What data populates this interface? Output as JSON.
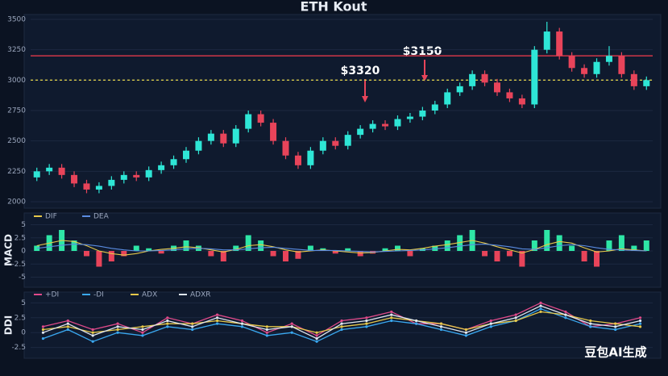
{
  "chart_data": [
    {
      "type": "candlestick",
      "title": "ETH Kout",
      "candles": [
        [
          2200,
          2280,
          2170,
          2250
        ],
        [
          2250,
          2310,
          2220,
          2280
        ],
        [
          2280,
          2310,
          2190,
          2220
        ],
        [
          2220,
          2250,
          2120,
          2150
        ],
        [
          2150,
          2180,
          2070,
          2100
        ],
        [
          2100,
          2160,
          2070,
          2130
        ],
        [
          2130,
          2210,
          2100,
          2180
        ],
        [
          2180,
          2250,
          2150,
          2220
        ],
        [
          2220,
          2250,
          2170,
          2200
        ],
        [
          2200,
          2290,
          2170,
          2260
        ],
        [
          2260,
          2330,
          2230,
          2300
        ],
        [
          2300,
          2380,
          2270,
          2350
        ],
        [
          2350,
          2450,
          2320,
          2420
        ],
        [
          2420,
          2530,
          2390,
          2500
        ],
        [
          2500,
          2590,
          2470,
          2560
        ],
        [
          2560,
          2590,
          2450,
          2480
        ],
        [
          2480,
          2630,
          2450,
          2600
        ],
        [
          2600,
          2750,
          2570,
          2720
        ],
        [
          2720,
          2750,
          2620,
          2650
        ],
        [
          2650,
          2680,
          2470,
          2500
        ],
        [
          2500,
          2530,
          2350,
          2380
        ],
        [
          2380,
          2410,
          2270,
          2300
        ],
        [
          2300,
          2450,
          2270,
          2420
        ],
        [
          2420,
          2530,
          2390,
          2500
        ],
        [
          2500,
          2530,
          2430,
          2460
        ],
        [
          2460,
          2580,
          2430,
          2550
        ],
        [
          2550,
          2630,
          2520,
          2600
        ],
        [
          2600,
          2670,
          2570,
          2640
        ],
        [
          2640,
          2670,
          2590,
          2620
        ],
        [
          2620,
          2710,
          2590,
          2680
        ],
        [
          2680,
          2730,
          2650,
          2700
        ],
        [
          2700,
          2780,
          2670,
          2750
        ],
        [
          2750,
          2830,
          2720,
          2800
        ],
        [
          2800,
          2930,
          2770,
          2900
        ],
        [
          2900,
          2980,
          2870,
          2950
        ],
        [
          2950,
          3080,
          2920,
          3050
        ],
        [
          3050,
          3080,
          2950,
          2980
        ],
        [
          2980,
          3010,
          2870,
          2900
        ],
        [
          2900,
          2930,
          2820,
          2850
        ],
        [
          2850,
          2880,
          2770,
          2800
        ],
        [
          2800,
          3280,
          2770,
          3250
        ],
        [
          3250,
          3480,
          3220,
          3400
        ],
        [
          3400,
          3430,
          3170,
          3200
        ],
        [
          3200,
          3230,
          3070,
          3100
        ],
        [
          3100,
          3130,
          3020,
          3050
        ],
        [
          3050,
          3180,
          3020,
          3150
        ],
        [
          3150,
          3280,
          3120,
          3200
        ],
        [
          3200,
          3230,
          3020,
          3050
        ],
        [
          3050,
          3080,
          2920,
          2950
        ],
        [
          2950,
          3030,
          2920,
          3000
        ]
      ],
      "up_color": "#2ee6d6",
      "down_color": "#e8445a",
      "ylim": [
        2000,
        3500
      ],
      "yticks": [
        2000,
        2250,
        2500,
        2750,
        3000,
        3250,
        3500
      ],
      "grid": true,
      "hlines": [
        {
          "value": 3200,
          "color": "#e0394a",
          "dashed": false
        },
        {
          "value": 3000,
          "color": "#d6c84a",
          "dashed": true
        }
      ],
      "annotations": [
        "$3320",
        "$3150"
      ]
    },
    {
      "type": "macd",
      "ylabel": "MACD",
      "histogram": [
        1,
        3,
        4,
        2,
        -1,
        -3,
        -2,
        -1,
        1,
        0.5,
        -0.5,
        1,
        2,
        1,
        -1,
        -2,
        1,
        3,
        2,
        -1,
        -2,
        -1.5,
        1,
        0.5,
        -0.5,
        0.5,
        -1,
        -0.5,
        0.5,
        1,
        -1,
        0.5,
        1,
        2,
        3,
        4,
        -1,
        -2,
        -1,
        -3,
        2,
        4,
        3,
        1,
        -2,
        -3,
        2,
        3,
        1,
        2
      ],
      "series": [
        {
          "name": "DIF",
          "color": "#e6c84a",
          "values": [
            1,
            1.5,
            2,
            1.8,
            1,
            0,
            -0.5,
            -0.8,
            -0.5,
            0,
            0.3,
            0.5,
            0.8,
            0.6,
            0.2,
            -0.2,
            0.3,
            1,
            1.2,
            0.8,
            0.2,
            -0.2,
            0,
            0.2,
            0,
            -0.2,
            -0.4,
            -0.3,
            0,
            0.3,
            0.2,
            0.5,
            0.9,
            1.2,
            1.6,
            2,
            1.5,
            0.8,
            0.2,
            -0.4,
            0.3,
            1.2,
            1.8,
            1.5,
            0.6,
            -0.2,
            0,
            0.4,
            0.2,
            0
          ]
        },
        {
          "name": "DEA",
          "color": "#5a8be0",
          "values": [
            0.5,
            0.8,
            1.1,
            1.3,
            1.2,
            0.9,
            0.5,
            0.2,
            0,
            0,
            0.1,
            0.2,
            0.4,
            0.5,
            0.4,
            0.2,
            0.2,
            0.4,
            0.6,
            0.7,
            0.5,
            0.3,
            0.1,
            0.1,
            0.1,
            0,
            -0.1,
            -0.2,
            -0.1,
            0,
            0.1,
            0.2,
            0.4,
            0.6,
            0.9,
            1.2,
            1.3,
            1.1,
            0.8,
            0.4,
            0.3,
            0.6,
            1,
            1.2,
            1,
            0.6,
            0.3,
            0.2,
            0.1,
            0
          ]
        }
      ],
      "up_color": "#2ee6a6",
      "down_color": "#e8445a",
      "ylim": [
        -6,
        6
      ],
      "yticks": [
        -5,
        -2.5,
        0,
        2.5,
        5
      ]
    },
    {
      "type": "line",
      "ylabel": "DDI",
      "series": [
        {
          "name": "+DI",
          "color": "#e04a8a",
          "values": [
            1,
            2,
            0.5,
            1.5,
            0,
            2.5,
            1.5,
            3,
            2,
            0,
            1.5,
            -0.5,
            2,
            2.5,
            3.5,
            1.5,
            1.5,
            0.5,
            2,
            3,
            5,
            3.5,
            1,
            1.5,
            2.5
          ]
        },
        {
          "name": "-DI",
          "color": "#3aa8f0",
          "values": [
            -1,
            0.5,
            -1.5,
            0,
            -0.5,
            1,
            0.5,
            1.5,
            1,
            -0.5,
            0,
            -1.5,
            0.5,
            1,
            2,
            1.5,
            0.5,
            -0.5,
            1,
            2,
            4,
            2.5,
            1,
            0.5,
            1.5
          ]
        },
        {
          "name": "ADX",
          "color": "#e6c84a",
          "values": [
            0.5,
            1,
            0,
            0.5,
            1,
            1.5,
            1.5,
            2,
            1.5,
            1,
            1,
            0,
            1,
            1.5,
            2.5,
            2,
            1.5,
            0.5,
            1.5,
            2,
            3.5,
            3,
            2,
            1.5,
            1
          ]
        },
        {
          "name": "ADXR",
          "color": "#dfe6f0",
          "values": [
            0,
            1.5,
            -0.5,
            1,
            0.5,
            2,
            1,
            2.5,
            1.5,
            0.5,
            1,
            -1,
            1.5,
            2,
            3,
            2,
            1,
            0,
            1.5,
            2.5,
            4.5,
            3,
            1.5,
            1,
            2
          ]
        }
      ],
      "ylim": [
        -3.5,
        6
      ],
      "yticks": [
        -2.5,
        0,
        2.5,
        5
      ]
    }
  ],
  "watermark": "豆包AI生成"
}
